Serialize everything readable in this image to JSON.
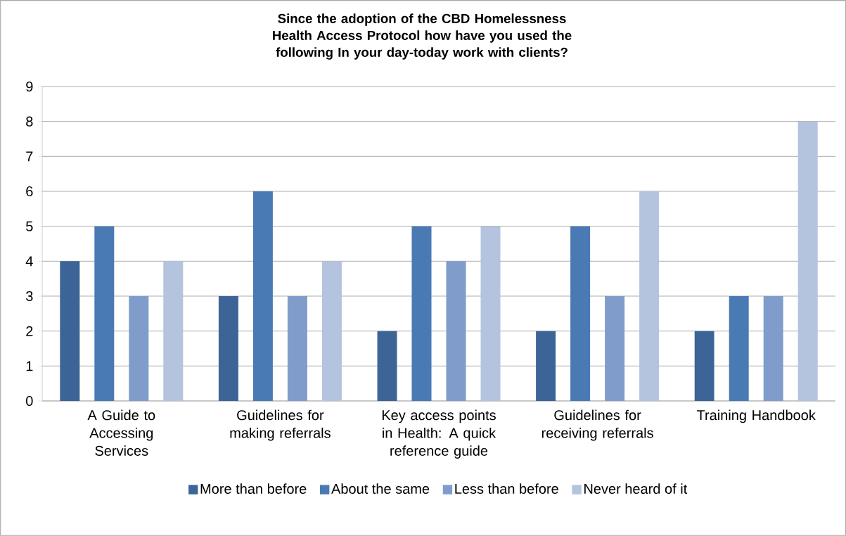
{
  "chart_data": {
    "type": "bar",
    "title": "Since the adoption of the CBD Homelessness Health Access Protocol  how have you used the following In your day-today work with clients?",
    "categories": [
      "A Guide to Accessing Services",
      "Guidelines for making referrals",
      "Key access points in Health: A quick reference guide",
      "Guidelines for receiving referrals",
      "Training Handbook"
    ],
    "series": [
      {
        "name": "More than before",
        "color": "#3c6496",
        "values": [
          4,
          3,
          2,
          2,
          2
        ]
      },
      {
        "name": "About the same",
        "color": "#4a7ab4",
        "values": [
          5,
          6,
          5,
          5,
          3
        ]
      },
      {
        "name": "Less than before",
        "color": "#7f9ccb",
        "values": [
          3,
          3,
          4,
          3,
          3
        ]
      },
      {
        "name": "Never heard of it",
        "color": "#b4c3de",
        "values": [
          4,
          4,
          5,
          6,
          8
        ]
      }
    ],
    "ylim": [
      0,
      9
    ],
    "yticks": [
      0,
      1,
      2,
      3,
      4,
      5,
      6,
      7,
      8,
      9
    ],
    "grid": "y",
    "legend": "bottom"
  }
}
